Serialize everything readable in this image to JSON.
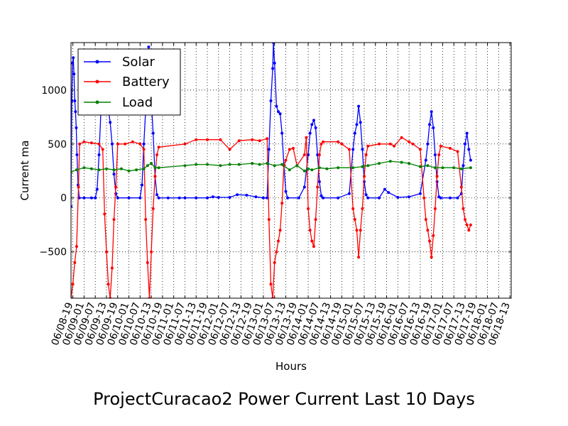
{
  "chart_data": {
    "type": "line",
    "title": "ProjectCuracao2 Power Current Last 10 Days",
    "xlabel": "Hours",
    "ylabel": "Current ma",
    "ylim": [
      -930,
      1440
    ],
    "y_ticks": [
      -500,
      0,
      500,
      1000
    ],
    "y_tick_labels": [
      "−500",
      "0",
      "500",
      "1000"
    ],
    "grid": true,
    "legend_placement": "top-left",
    "x_tick_labels": [
      "06/08-19",
      "06/09-01",
      "06/09-07",
      "06/09-13",
      "06/09-19",
      "06/10-01",
      "06/10-07",
      "06/10-13",
      "06/10-19",
      "06/11-01",
      "06/11-07",
      "06/11-13",
      "06/11-19",
      "06/12-01",
      "06/12-07",
      "06/12-13",
      "06/12-19",
      "06/13-01",
      "06/13-07",
      "06/13-13",
      "06/13-19",
      "06/14-01",
      "06/14-07",
      "06/14-13",
      "06/14-19",
      "06/15-01",
      "06/15-07",
      "06/15-13",
      "06/15-19",
      "06/16-01",
      "06/16-07",
      "06/16-13",
      "06/16-19",
      "06/17-01",
      "06/17-07",
      "06/17-13",
      "06/17-19",
      "06/18-01",
      "06/18-07",
      "06/18-13"
    ],
    "x_unit_hours_per_tick": 6,
    "x_range_hours": [
      -1,
      234.7
    ],
    "series": [
      {
        "name": "Solar",
        "color": "#0000ff",
        "points": [
          [
            -1,
            -80
          ],
          [
            -0.6,
            900
          ],
          [
            -0.2,
            1250
          ],
          [
            0.2,
            1300
          ],
          [
            0.6,
            1150
          ],
          [
            1,
            900
          ],
          [
            1.4,
            800
          ],
          [
            1.8,
            650
          ],
          [
            2.2,
            400
          ],
          [
            2.8,
            120
          ],
          [
            3.4,
            0
          ],
          [
            6,
            0
          ],
          [
            10,
            0
          ],
          [
            12,
            0
          ],
          [
            13,
            80
          ],
          [
            14,
            400
          ],
          [
            15,
            800
          ],
          [
            16,
            900
          ],
          [
            17,
            1100
          ],
          [
            18,
            950
          ],
          [
            19,
            820
          ],
          [
            20,
            700
          ],
          [
            21,
            500
          ],
          [
            22,
            220
          ],
          [
            23,
            40
          ],
          [
            24,
            0
          ],
          [
            30,
            0
          ],
          [
            36,
            0
          ],
          [
            37,
            120
          ],
          [
            38,
            500
          ],
          [
            39,
            820
          ],
          [
            40,
            1100
          ],
          [
            40.6,
            1400
          ],
          [
            41.2,
            1200
          ],
          [
            42,
            900
          ],
          [
            43,
            600
          ],
          [
            44,
            200
          ],
          [
            45,
            30
          ],
          [
            46,
            0
          ],
          [
            51,
            0
          ],
          [
            57,
            0
          ],
          [
            60,
            0
          ],
          [
            66,
            0
          ],
          [
            72,
            0
          ],
          [
            75,
            10
          ],
          [
            78,
            5
          ],
          [
            84,
            5
          ],
          [
            88,
            30
          ],
          [
            93,
            25
          ],
          [
            98,
            10
          ],
          [
            102,
            0
          ],
          [
            104,
            0
          ],
          [
            105,
            450
          ],
          [
            106,
            900
          ],
          [
            107,
            1200
          ],
          [
            107.4,
            1440
          ],
          [
            108,
            1250
          ],
          [
            109,
            850
          ],
          [
            110,
            800
          ],
          [
            111,
            780
          ],
          [
            112,
            600
          ],
          [
            113,
            300
          ],
          [
            114,
            60
          ],
          [
            115,
            0
          ],
          [
            121,
            0
          ],
          [
            124,
            100
          ],
          [
            126,
            400
          ],
          [
            127,
            600
          ],
          [
            128,
            680
          ],
          [
            129,
            720
          ],
          [
            130,
            650
          ],
          [
            131,
            400
          ],
          [
            132,
            150
          ],
          [
            133,
            20
          ],
          [
            134,
            0
          ],
          [
            142,
            0
          ],
          [
            148,
            40
          ],
          [
            150,
            450
          ],
          [
            151,
            600
          ],
          [
            152,
            680
          ],
          [
            153,
            850
          ],
          [
            154,
            700
          ],
          [
            155,
            450
          ],
          [
            156,
            150
          ],
          [
            157,
            30
          ],
          [
            158,
            0
          ],
          [
            164,
            0
          ],
          [
            167,
            80
          ],
          [
            169,
            50
          ],
          [
            174,
            5
          ],
          [
            180,
            10
          ],
          [
            186,
            40
          ],
          [
            189,
            350
          ],
          [
            190,
            500
          ],
          [
            191,
            680
          ],
          [
            192,
            800
          ],
          [
            193,
            650
          ],
          [
            194,
            400
          ],
          [
            195,
            150
          ],
          [
            196,
            10
          ],
          [
            197,
            0
          ],
          [
            202,
            0
          ],
          [
            206,
            0
          ],
          [
            208,
            40
          ],
          [
            209,
            300
          ],
          [
            210,
            500
          ],
          [
            211,
            600
          ],
          [
            212,
            450
          ],
          [
            213,
            350
          ]
        ]
      },
      {
        "name": "Battery",
        "color": "#ff0000",
        "points": [
          [
            -1,
            -930
          ],
          [
            0,
            -800
          ],
          [
            1,
            -600
          ],
          [
            2,
            -450
          ],
          [
            3,
            100
          ],
          [
            3.6,
            500
          ],
          [
            6,
            520
          ],
          [
            10,
            510
          ],
          [
            14,
            500
          ],
          [
            16,
            450
          ],
          [
            17,
            -150
          ],
          [
            18,
            -500
          ],
          [
            19,
            -800
          ],
          [
            20,
            -930
          ],
          [
            21,
            -650
          ],
          [
            22,
            -200
          ],
          [
            23,
            100
          ],
          [
            24,
            500
          ],
          [
            28,
            500
          ],
          [
            32,
            520
          ],
          [
            36,
            500
          ],
          [
            38,
            450
          ],
          [
            39,
            -200
          ],
          [
            40,
            -600
          ],
          [
            41,
            -930
          ],
          [
            42,
            -500
          ],
          [
            43,
            -100
          ],
          [
            44,
            200
          ],
          [
            45,
            400
          ],
          [
            46,
            470
          ],
          [
            60,
            500
          ],
          [
            66,
            540
          ],
          [
            72,
            540
          ],
          [
            79,
            540
          ],
          [
            84,
            450
          ],
          [
            89,
            530
          ],
          [
            96,
            540
          ],
          [
            100,
            530
          ],
          [
            104,
            550
          ],
          [
            105,
            -200
          ],
          [
            106,
            -800
          ],
          [
            107,
            -930
          ],
          [
            108,
            -600
          ],
          [
            109,
            -500
          ],
          [
            110,
            -400
          ],
          [
            111,
            -300
          ],
          [
            112,
            -50
          ],
          [
            113,
            300
          ],
          [
            114,
            350
          ],
          [
            116,
            450
          ],
          [
            118,
            460
          ],
          [
            120,
            300
          ],
          [
            124,
            400
          ],
          [
            125,
            560
          ],
          [
            126,
            -100
          ],
          [
            127,
            -300
          ],
          [
            128,
            -400
          ],
          [
            129,
            -450
          ],
          [
            130,
            -200
          ],
          [
            131,
            100
          ],
          [
            132,
            400
          ],
          [
            133,
            500
          ],
          [
            134,
            520
          ],
          [
            142,
            520
          ],
          [
            144,
            500
          ],
          [
            148,
            450
          ],
          [
            150,
            -100
          ],
          [
            151,
            -200
          ],
          [
            152,
            -300
          ],
          [
            153,
            -550
          ],
          [
            154,
            -300
          ],
          [
            155,
            -100
          ],
          [
            156,
            200
          ],
          [
            157,
            400
          ],
          [
            158,
            480
          ],
          [
            164,
            500
          ],
          [
            170,
            500
          ],
          [
            172,
            480
          ],
          [
            176,
            560
          ],
          [
            180,
            520
          ],
          [
            182,
            500
          ],
          [
            186,
            450
          ],
          [
            188,
            0
          ],
          [
            189,
            -200
          ],
          [
            190,
            -300
          ],
          [
            191,
            -400
          ],
          [
            192,
            -550
          ],
          [
            193,
            -350
          ],
          [
            194,
            -100
          ],
          [
            195,
            200
          ],
          [
            196,
            400
          ],
          [
            197,
            480
          ],
          [
            202,
            460
          ],
          [
            206,
            430
          ],
          [
            208,
            100
          ],
          [
            209,
            -100
          ],
          [
            210,
            -200
          ],
          [
            211,
            -250
          ],
          [
            212,
            -300
          ],
          [
            213,
            -250
          ]
        ]
      },
      {
        "name": "Load",
        "color": "#008000",
        "points": [
          [
            -1,
            240
          ],
          [
            2,
            260
          ],
          [
            6,
            280
          ],
          [
            10,
            270
          ],
          [
            14,
            260
          ],
          [
            18,
            270
          ],
          [
            22,
            260
          ],
          [
            26,
            270
          ],
          [
            30,
            250
          ],
          [
            34,
            260
          ],
          [
            38,
            270
          ],
          [
            40,
            300
          ],
          [
            42,
            320
          ],
          [
            44,
            280
          ],
          [
            46,
            280
          ],
          [
            60,
            300
          ],
          [
            66,
            310
          ],
          [
            72,
            310
          ],
          [
            79,
            300
          ],
          [
            84,
            310
          ],
          [
            89,
            310
          ],
          [
            96,
            320
          ],
          [
            100,
            310
          ],
          [
            104,
            320
          ],
          [
            108,
            300
          ],
          [
            112,
            310
          ],
          [
            116,
            260
          ],
          [
            120,
            300
          ],
          [
            124,
            250
          ],
          [
            126,
            270
          ],
          [
            128,
            260
          ],
          [
            132,
            280
          ],
          [
            136,
            270
          ],
          [
            142,
            280
          ],
          [
            150,
            280
          ],
          [
            155,
            290
          ],
          [
            158,
            300
          ],
          [
            164,
            320
          ],
          [
            170,
            340
          ],
          [
            176,
            330
          ],
          [
            180,
            320
          ],
          [
            186,
            290
          ],
          [
            190,
            300
          ],
          [
            194,
            280
          ],
          [
            198,
            280
          ],
          [
            204,
            280
          ],
          [
            208,
            270
          ],
          [
            213,
            280
          ]
        ]
      }
    ]
  }
}
